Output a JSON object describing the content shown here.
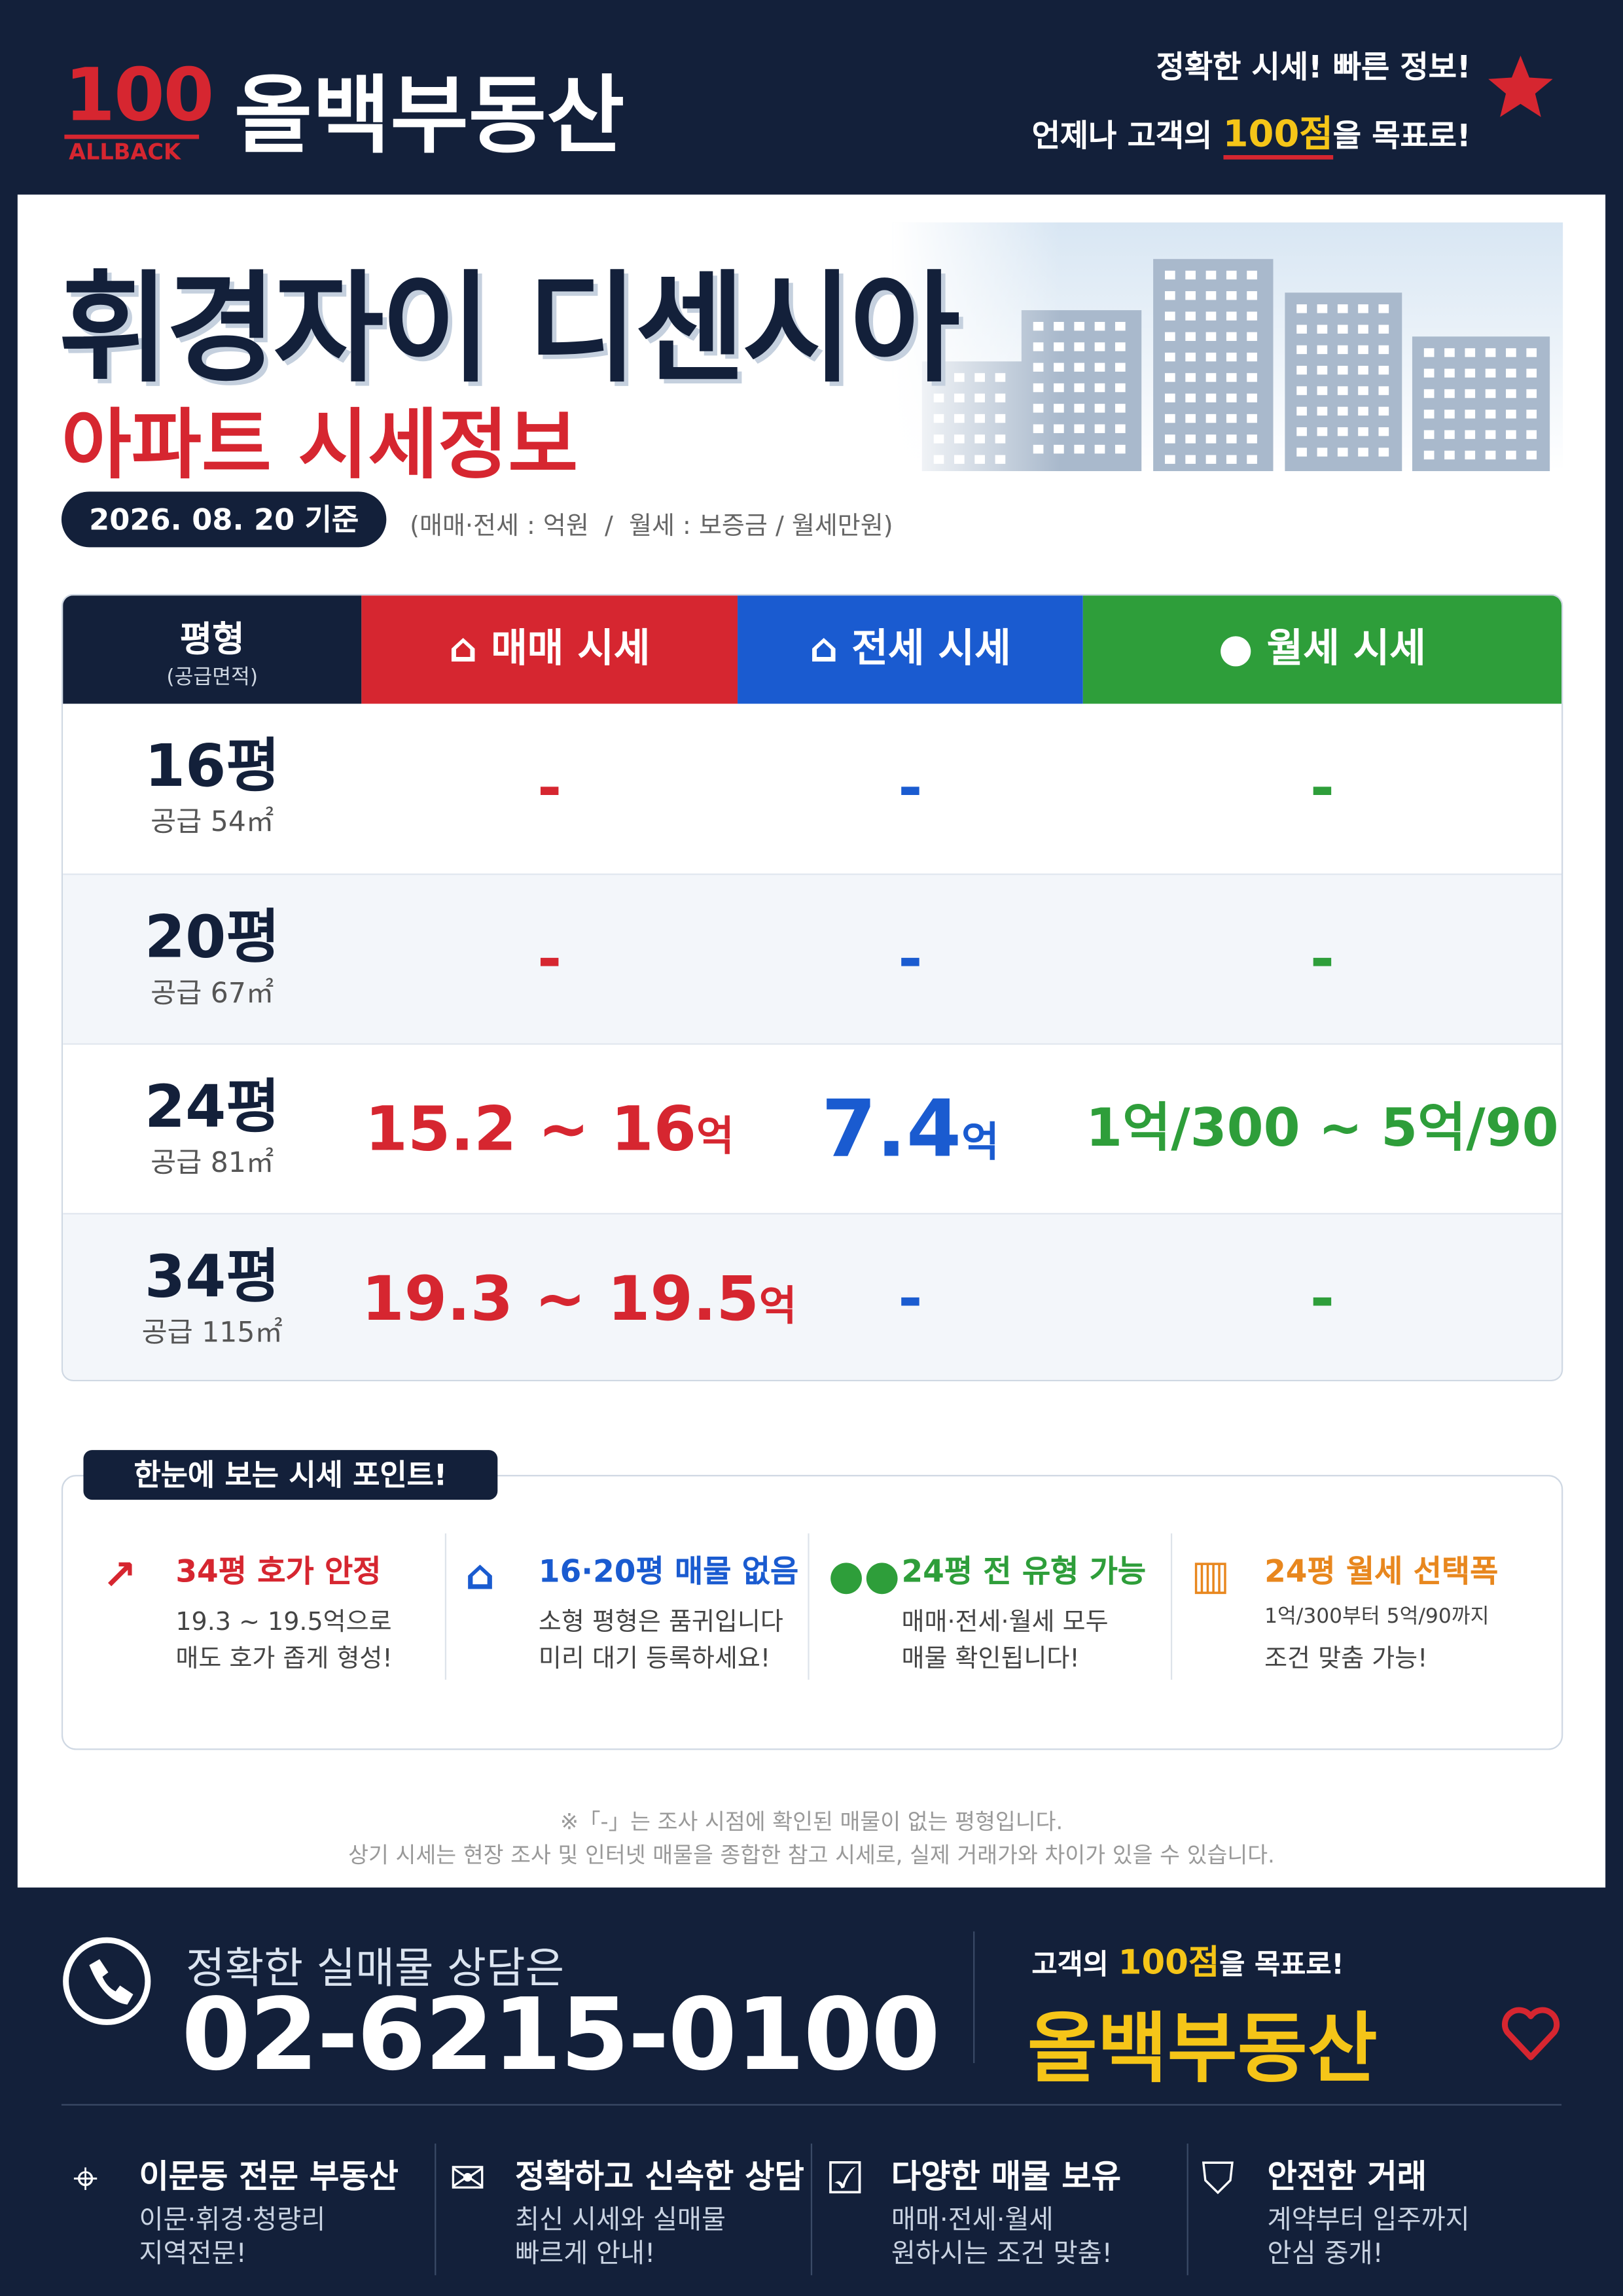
{
  "header": {
    "logo_number": "100",
    "logo_sub": "ALLBACK",
    "brand": "올백부동산",
    "slogan_line1": "정확한 시세! 빠른 정보!",
    "slogan_line2": [
      "언제나 고객의 ",
      "100점",
      "을 목표로!"
    ]
  },
  "hero": {
    "title": "휘경자이 디센시아",
    "subtitle": "아파트 시세정보",
    "date": "2026. 08. 20 기준",
    "unit_note": "(매매·전세 : 억원  /  월세 : 보증금 / 월세만원)"
  },
  "table": {
    "headers": {
      "size": "평형",
      "size_sub": "(공급면적)",
      "sale": "매매 시세",
      "jeonse": "전세 시세",
      "monthly": "월세 시세"
    },
    "rows": [
      {
        "size": "16평",
        "supply": "공급 54㎡",
        "sale": {
          "text": "-"
        },
        "jeonse": {
          "text": "-"
        },
        "monthly": {
          "text": "-"
        }
      },
      {
        "size": "20평",
        "supply": "공급 67㎡",
        "sale": {
          "text": "-"
        },
        "jeonse": {
          "text": "-"
        },
        "monthly": {
          "text": "-"
        }
      },
      {
        "size": "24평",
        "supply": "공급 81㎡",
        "sale": {
          "text": "15.2 ~ 16",
          "unit": "억"
        },
        "jeonse": {
          "text": "7.4",
          "unit": "억"
        },
        "monthly": {
          "text": "1억/300 ~ 5억/90"
        }
      },
      {
        "size": "34평",
        "supply": "공급 115㎡",
        "sale": {
          "text": "19.3 ~ 19.5",
          "unit": "억"
        },
        "jeonse": {
          "text": "-"
        },
        "monthly": {
          "text": "-"
        }
      }
    ]
  },
  "points": {
    "badge": "한눈에 보는 시세 포인트!",
    "items": [
      {
        "title": "34평 호가 안정",
        "lines": [
          "19.3 ~ 19.5억으로",
          "매도 호가 좁게 형성!"
        ]
      },
      {
        "title": "16·20평 매물 없음",
        "lines": [
          "소형 평형은 품귀입니다",
          "미리 대기 등록하세요!"
        ]
      },
      {
        "title": "24평 전 유형 가능",
        "lines": [
          "매매·전세·월세 모두",
          "매물 확인됩니다!"
        ]
      },
      {
        "title": "24평 월세 선택폭",
        "lines": [
          "1억/300부터 5억/90까지",
          "조건 맞춤 가능!"
        ]
      }
    ]
  },
  "notes": [
    "※「-」는 조사 시점에 확인된 매물이 없는 평형입니다.",
    "상기 시세는 현장 조사 및 인터넷 매물을 종합한 참고 시세로, 실제 거래가와 차이가 있을 수 있습니다."
  ],
  "footer": {
    "contact_label": "정확한 실매물 상담은",
    "phone": "02-6215-0100",
    "tagline": [
      "고객의 ",
      "100점",
      "을 목표로!"
    ],
    "brand": "올백부동산",
    "features": [
      {
        "title": "이문동 전문 부동산",
        "lines": [
          "이문·휘경·청량리",
          "지역전문!"
        ]
      },
      {
        "title": "정확하고 신속한 상담",
        "lines": [
          "최신 시세와 실매물",
          "빠르게 안내!"
        ]
      },
      {
        "title": "다양한 매물 보유",
        "lines": [
          "매매·전세·월세",
          "원하시는 조건 맞춤!"
        ]
      },
      {
        "title": "안전한 거래",
        "lines": [
          "계약부터 입주까지",
          "안심 중개!"
        ]
      }
    ]
  }
}
